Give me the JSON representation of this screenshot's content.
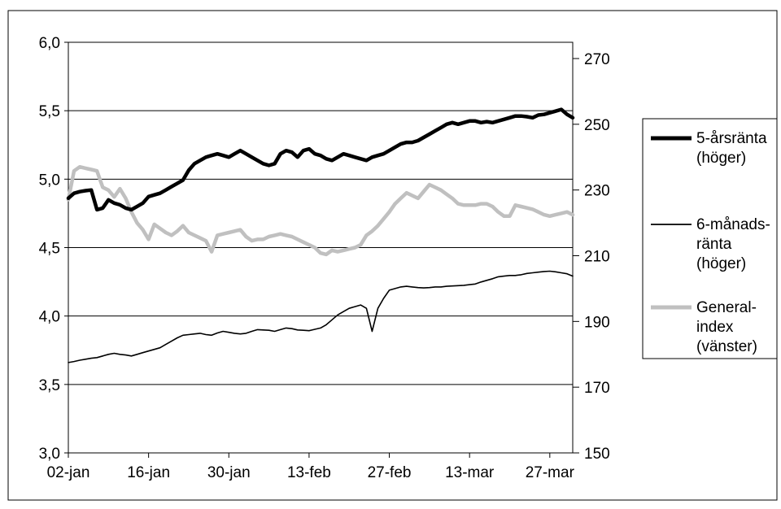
{
  "chart_data": {
    "type": "line",
    "x_tick_labels": [
      "02-jan",
      "16-jan",
      "30-jan",
      "13-feb",
      "27-feb",
      "13-mar",
      "27-mar"
    ],
    "left_axis": {
      "ylim": [
        3.0,
        6.0
      ],
      "ticks": [
        "3,0",
        "3,5",
        "4,0",
        "4,5",
        "5,0",
        "5,5",
        "6,0"
      ]
    },
    "right_axis": {
      "ylim": [
        150,
        270
      ],
      "ticks": [
        "150",
        "170",
        "190",
        "210",
        "230",
        "250",
        "270"
      ]
    },
    "grid": "horizontal",
    "legend_position": "right",
    "legend": [
      {
        "lines": [
          "5-årsränta",
          "(höger)"
        ],
        "color": "#000000",
        "style": "thick"
      },
      {
        "lines": [
          "6-månads-",
          "ränta",
          "(höger)"
        ],
        "color": "#000000",
        "style": "thin"
      },
      {
        "lines": [
          "General-",
          "index",
          "(vänster)"
        ],
        "color": "#c0c0c0",
        "style": "thick"
      }
    ],
    "series": [
      {
        "name": "5-årsränta (höger)",
        "axis": "right",
        "color": "#000000",
        "style": "thick",
        "x": [
          0,
          1,
          2,
          3,
          4,
          5,
          6,
          7,
          8,
          9,
          10,
          11,
          12,
          13,
          14,
          15,
          16,
          17,
          18,
          19,
          20,
          21,
          22,
          23,
          24,
          25,
          26,
          27,
          28,
          29,
          30,
          31,
          32,
          33,
          34,
          35,
          36,
          37,
          38,
          39,
          40,
          41,
          42,
          43,
          44,
          45,
          46,
          47,
          48,
          49,
          50,
          51,
          52,
          53,
          54,
          55,
          56,
          57,
          58,
          59,
          60,
          61,
          62,
          63,
          64,
          65,
          66,
          67,
          68,
          69,
          70,
          71,
          72,
          73,
          74,
          75,
          76,
          77,
          78,
          79,
          80,
          81,
          82,
          83,
          84,
          85,
          86,
          87,
          88
        ],
        "values": [
          227.5,
          229,
          229.5,
          229.8,
          230,
          224,
          224.5,
          227,
          226,
          225.5,
          224.5,
          224,
          225,
          226,
          228,
          228.5,
          229,
          230,
          231,
          232,
          233,
          236,
          238,
          239,
          240,
          240.5,
          241,
          240.5,
          240,
          241,
          242,
          241,
          240,
          239,
          238,
          237.5,
          238,
          241,
          242,
          241.5,
          240,
          242,
          242.5,
          241,
          240.5,
          239.5,
          239,
          240,
          241,
          240.5,
          240,
          239.5,
          239,
          240,
          240.5,
          241,
          242,
          243,
          244,
          244.5,
          244.5,
          245,
          246,
          247,
          248,
          249,
          250,
          250.5,
          250,
          250.5,
          251,
          251,
          250.5,
          250.8,
          250.5,
          251,
          251.5,
          252,
          252.5,
          252.5,
          252.3,
          252,
          252.8,
          253,
          253.5,
          254,
          254.5,
          253,
          252
        ],
        "x_range": [
          0,
          88
        ]
      },
      {
        "name": "6-månadsränta (höger)",
        "axis": "right",
        "color": "#000000",
        "style": "thin",
        "x": [
          0,
          1,
          2,
          3,
          4,
          5,
          6,
          7,
          8,
          9,
          10,
          11,
          12,
          13,
          14,
          15,
          16,
          17,
          18,
          19,
          20,
          21,
          22,
          23,
          24,
          25,
          26,
          27,
          28,
          29,
          30,
          31,
          32,
          33,
          34,
          35,
          36,
          37,
          38,
          39,
          40,
          41,
          42,
          43,
          44,
          45,
          46,
          47,
          48,
          49,
          50,
          51,
          52,
          53,
          54,
          55,
          56,
          57,
          58,
          59,
          60,
          61,
          62,
          63,
          64,
          65,
          66,
          67,
          68,
          69,
          70,
          71,
          72,
          73,
          74,
          75,
          76,
          77,
          78,
          79,
          80,
          81,
          82,
          83,
          84,
          85,
          86,
          87,
          88
        ],
        "values": [
          177.5,
          177.8,
          178.2,
          178.5,
          178.8,
          179,
          179.5,
          180,
          180.3,
          180,
          179.8,
          179.5,
          180,
          180.5,
          181,
          181.5,
          182,
          183,
          184,
          185,
          185.8,
          186,
          186.2,
          186.4,
          186,
          185.8,
          186.5,
          187,
          186.7,
          186.4,
          186.2,
          186.4,
          187,
          187.5,
          187.4,
          187.3,
          187,
          187.5,
          188,
          187.8,
          187.4,
          187.3,
          187.2,
          187.6,
          188,
          189,
          190.5,
          192,
          193,
          194,
          194.5,
          195,
          194,
          187,
          194,
          197,
          199.5,
          200,
          200.5,
          200.7,
          200.5,
          200.3,
          200.2,
          200.3,
          200.5,
          200.5,
          200.7,
          200.8,
          200.9,
          201,
          201.2,
          201.4,
          202,
          202.5,
          203,
          203.6,
          203.8,
          204,
          204,
          204.2,
          204.6,
          204.8,
          205,
          205.2,
          205.3,
          205.1,
          204.8,
          204.5,
          203.8
        ],
        "x_range": [
          0,
          88
        ]
      },
      {
        "name": "Generalindex (vänster)",
        "axis": "left",
        "color": "#c0c0c0",
        "style": "thick",
        "x": [
          0,
          1,
          2,
          3,
          4,
          5,
          6,
          7,
          8,
          9,
          10,
          11,
          12,
          13,
          14,
          15,
          16,
          17,
          18,
          19,
          20,
          21,
          22,
          23,
          24,
          25,
          26,
          27,
          28,
          29,
          30,
          31,
          32,
          33,
          34,
          35,
          36,
          37,
          38,
          39,
          40,
          41,
          42,
          43,
          44,
          45,
          46,
          47,
          48,
          49,
          50,
          51,
          52,
          53,
          54,
          55,
          56,
          57,
          58,
          59,
          60,
          61,
          62,
          63,
          64,
          65,
          66,
          67,
          68,
          69,
          70,
          71,
          72,
          73,
          74,
          75,
          76,
          77,
          78,
          79,
          80,
          81,
          82,
          83,
          84,
          85,
          86,
          87,
          88
        ],
        "values": [
          4.85,
          5.06,
          5.09,
          5.08,
          5.07,
          5.06,
          4.94,
          4.92,
          4.87,
          4.93,
          4.86,
          4.76,
          4.68,
          4.63,
          4.56,
          4.67,
          4.64,
          4.61,
          4.59,
          4.62,
          4.66,
          4.61,
          4.59,
          4.57,
          4.55,
          4.47,
          4.59,
          4.6,
          4.61,
          4.62,
          4.63,
          4.58,
          4.55,
          4.56,
          4.56,
          4.58,
          4.59,
          4.6,
          4.59,
          4.58,
          4.56,
          4.54,
          4.52,
          4.5,
          4.46,
          4.45,
          4.48,
          4.47,
          4.48,
          4.49,
          4.5,
          4.52,
          4.59,
          4.62,
          4.66,
          4.71,
          4.76,
          4.82,
          4.86,
          4.9,
          4.88,
          4.86,
          4.91,
          4.96,
          4.94,
          4.92,
          4.89,
          4.86,
          4.82,
          4.81,
          4.81,
          4.81,
          4.82,
          4.82,
          4.8,
          4.76,
          4.73,
          4.73,
          4.81,
          4.8,
          4.79,
          4.78,
          4.76,
          4.74,
          4.73,
          4.74,
          4.75,
          4.76,
          4.74
        ],
        "x_range": [
          0,
          88
        ]
      }
    ]
  }
}
